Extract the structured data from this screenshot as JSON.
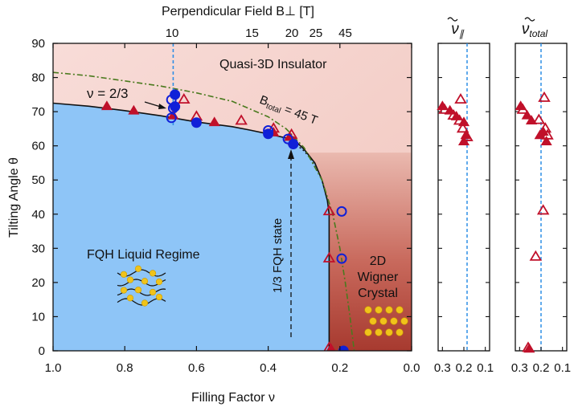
{
  "chart_data": {
    "type": "scatter",
    "main": {
      "xlabel": "Filling Factor ν",
      "ylabel": "Tilting Angle θ",
      "top_label": "Perpendicular Field B⊥ [T]",
      "xlim": [
        1.0,
        0.0
      ],
      "ylim": [
        0,
        90
      ],
      "xticks": [
        "1.0",
        "0.8",
        "0.6",
        "0.4",
        "0.2",
        "0.0"
      ],
      "yticks": [
        "0",
        "10",
        "20",
        "30",
        "40",
        "50",
        "60",
        "70",
        "80",
        "90"
      ],
      "top_ticks": [
        {
          "label": "10",
          "nu": 0.668
        },
        {
          "label": "15",
          "nu": 0.445
        },
        {
          "label": "20",
          "nu": 0.334
        },
        {
          "label": "25",
          "nu": 0.267
        },
        {
          "label": "45",
          "nu": 0.185
        }
      ],
      "regions": {
        "liquid": "FQH Liquid Regime",
        "insulator": "Quasi-3D Insulator",
        "crystal_line1": "2D",
        "crystal_line2": "Wigner",
        "crystal_line3": "Crystal"
      },
      "annotations": {
        "nu_label": "ν = 2/3",
        "btotal_label": "B",
        "btotal_sub": "total",
        "btotal_value": " = 45 T",
        "fqh_state": "1/3 FQH state"
      },
      "boundary": [
        [
          1.0,
          72.5
        ],
        [
          0.9,
          71.6
        ],
        [
          0.8,
          70.3
        ],
        [
          0.7,
          68.8
        ],
        [
          0.6,
          67.0
        ],
        [
          0.5,
          65.6
        ],
        [
          0.45,
          64.6
        ],
        [
          0.4,
          63.5
        ],
        [
          0.35,
          62.3
        ],
        [
          0.32,
          61.0
        ],
        [
          0.3,
          59.0
        ],
        [
          0.27,
          55.0
        ],
        [
          0.25,
          50.0
        ],
        [
          0.235,
          44.0
        ],
        [
          0.23,
          40.0
        ],
        [
          0.23,
          0.0
        ]
      ],
      "boundary_dotted": [
        [
          0.33,
          61.0
        ],
        [
          0.3,
          58.5
        ],
        [
          0.28,
          56.0
        ],
        [
          0.26,
          52.0
        ]
      ],
      "btotal_curve": [
        [
          1.0,
          81.5
        ],
        [
          0.9,
          80.5
        ],
        [
          0.8,
          79.0
        ],
        [
          0.7,
          77.5
        ],
        [
          0.6,
          75.5
        ],
        [
          0.5,
          73.0
        ],
        [
          0.4,
          68.5
        ],
        [
          0.35,
          65.0
        ],
        [
          0.3,
          59.5
        ],
        [
          0.25,
          50.0
        ],
        [
          0.22,
          40.0
        ],
        [
          0.2,
          30.0
        ],
        [
          0.185,
          20.0
        ],
        [
          0.172,
          10.0
        ],
        [
          0.16,
          0.0
        ]
      ],
      "series": [
        {
          "name": "filled triangles",
          "marker": "triangle",
          "fill": true,
          "color": "#c0102a",
          "points": [
            [
              0.85,
              71.5
            ],
            [
              0.775,
              70.2
            ],
            [
              0.665,
              68.8
            ],
            [
              0.55,
              66.8
            ],
            [
              0.33,
              61.2
            ],
            [
              0.34,
              62.5
            ],
            [
              0.385,
              63.8
            ],
            [
              0.225,
              0.5
            ]
          ]
        },
        {
          "name": "open triangles",
          "marker": "triangle",
          "fill": false,
          "color": "#c0102a",
          "points": [
            [
              0.635,
              73.5
            ],
            [
              0.6,
              68.5
            ],
            [
              0.475,
              67.3
            ],
            [
              0.385,
              65.0
            ],
            [
              0.335,
              63.2
            ],
            [
              0.23,
              40.8
            ],
            [
              0.23,
              27.0
            ],
            [
              0.23,
              0.8
            ]
          ]
        },
        {
          "name": "filled circles",
          "marker": "circle",
          "fill": true,
          "color": "#1020d8",
          "points": [
            [
              0.66,
              75.0
            ],
            [
              0.66,
              71.5
            ],
            [
              0.6,
              66.8
            ],
            [
              0.4,
              63.5
            ],
            [
              0.33,
              60.5
            ],
            [
              0.19,
              0.0
            ]
          ]
        },
        {
          "name": "open circles",
          "marker": "circle",
          "fill": false,
          "color": "#1020d8",
          "points": [
            [
              0.67,
              73.5
            ],
            [
              0.665,
              71.0
            ],
            [
              0.67,
              68.2
            ],
            [
              0.4,
              64.5
            ],
            [
              0.345,
              62.0
            ],
            [
              0.195,
              40.8
            ],
            [
              0.195,
              27.0
            ]
          ]
        }
      ]
    },
    "panels": [
      {
        "title_symbol": "ν",
        "title_sub": "∥",
        "xticks": [
          "0.3",
          "0.2",
          "0.1"
        ],
        "xlim": [
          0.32,
          0.08
        ],
        "dashed_x": 0.185,
        "series": [
          {
            "marker": "triangle",
            "fill": true,
            "color": "#c0102a",
            "points": [
              [
                0.3,
                71.5
              ],
              [
                0.265,
                70.2
              ],
              [
                0.2,
                66.8
              ],
              [
                0.19,
                63.0
              ],
              [
                0.235,
                68.5
              ],
              [
                0.2,
                61.2
              ]
            ]
          },
          {
            "marker": "triangle",
            "fill": false,
            "color": "#c0102a",
            "points": [
              [
                0.29,
                70.5
              ],
              [
                0.215,
                73.5
              ],
              [
                0.22,
                67.3
              ],
              [
                0.205,
                65.0
              ],
              [
                0.185,
                62.5
              ],
              [
                0.248,
                68.8
              ]
            ]
          }
        ]
      },
      {
        "title_symbol": "ν",
        "title_sub": "total",
        "xticks": [
          "0.3",
          "0.2",
          "0.1"
        ],
        "xlim": [
          0.32,
          0.08
        ],
        "dashed_x": 0.2,
        "series": [
          {
            "marker": "triangle",
            "fill": true,
            "color": "#c0102a",
            "points": [
              [
                0.295,
                71.5
              ],
              [
                0.265,
                68.8
              ],
              [
                0.245,
                67.3
              ],
              [
                0.19,
                64.0
              ],
              [
                0.175,
                61.2
              ],
              [
                0.255,
                0.5
              ],
              [
                0.205,
                63.0
              ]
            ]
          },
          {
            "marker": "triangle",
            "fill": false,
            "color": "#c0102a",
            "points": [
              [
                0.285,
                70.5
              ],
              [
                0.185,
                74.0
              ],
              [
                0.21,
                67.5
              ],
              [
                0.18,
                65.0
              ],
              [
                0.17,
                63.0
              ],
              [
                0.19,
                41.0
              ],
              [
                0.225,
                27.5
              ],
              [
                0.26,
                0.8
              ]
            ]
          }
        ]
      }
    ],
    "colors": {
      "liquid": "#8ec5f7",
      "insulator": "#f7d9d5",
      "crystal_dark": "#b3473b",
      "red": "#c0102a",
      "blue": "#1020d8",
      "btotal": "#4a7a1e",
      "dashed_blue": "#2f8fe6",
      "dot_yellow": "#f0c31a"
    }
  }
}
